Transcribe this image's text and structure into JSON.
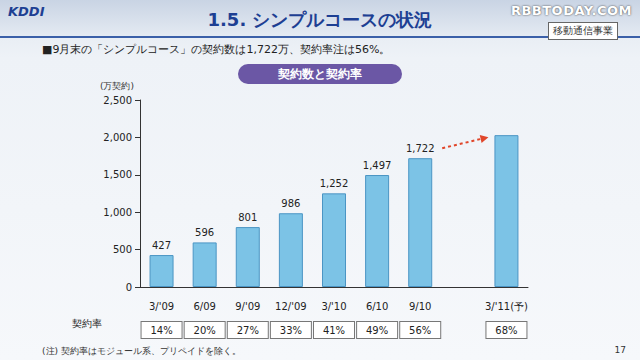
{
  "header": {
    "logo": "KDDI",
    "title": "1.5. シンプルコースの状況",
    "tag": "移動通信事業",
    "watermark": "RBBTODAY.COM",
    "bullet": "■9月末の「シンプルコース」の契約数は1,722万、契約率注は56%。"
  },
  "chart_data": {
    "type": "bar",
    "title": "契約数と契約率",
    "y_label": "(万契約)",
    "categories": [
      "3/'09",
      "6/09",
      "9/'09",
      "12/'09",
      "3/'10",
      "6/10",
      "9/10",
      null,
      "3/'11(予)"
    ],
    "values": [
      427,
      596,
      801,
      986,
      1252,
      1497,
      1722,
      null,
      2030
    ],
    "value_labels": [
      "427",
      "596",
      "801",
      "986",
      "1,252",
      "1,497",
      "1,722",
      null,
      null
    ],
    "color": "#7cc3e6",
    "ylim": [
      0,
      2500
    ],
    "yticks": [
      0,
      500,
      {
        "value": 1000,
        "label": "1,000"
      },
      {
        "value": 1500,
        "label": "1,500"
      },
      {
        "value": 2000,
        "label": "2,000"
      },
      {
        "value": 2500,
        "label": "2,500"
      }
    ],
    "grid": false,
    "data_labels": true,
    "rate_title": "契約率",
    "rates": [
      "14%",
      "20%",
      "27%",
      "33%",
      "41%",
      "49%",
      "56%",
      null,
      "68%"
    ]
  },
  "footer": {
    "note": "(注) 契約率はモジュール系、プリペイドを除く。",
    "page": "17"
  }
}
